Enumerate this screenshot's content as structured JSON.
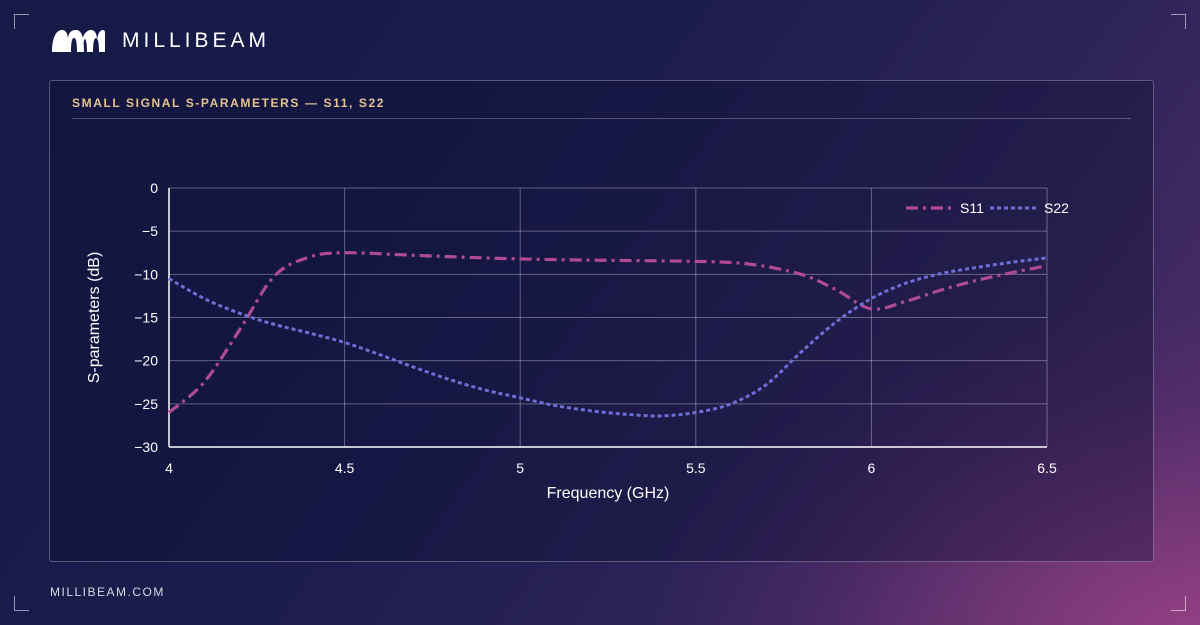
{
  "brand": {
    "name": "MILLIBEAM",
    "logo_icon": "millibeam-logo-icon"
  },
  "panel": {
    "title": "SMALL SIGNAL S-PARAMETERS — S11, S22"
  },
  "footer": {
    "url": "MILLIBEAM.COM"
  },
  "colors": {
    "accent_title": "#e3c38f",
    "s11": "#b04a93",
    "s22": "#6e6fd6"
  },
  "chart_data": {
    "type": "line",
    "title": "",
    "xlabel": "Frequency (GHz)",
    "ylabel": "S-parameters (dB)",
    "xlim": [
      4,
      6.5
    ],
    "ylim": [
      -30,
      0
    ],
    "xticks": [
      4,
      4.5,
      5,
      5.5,
      6,
      6.5
    ],
    "yticks": [
      0,
      -5,
      -10,
      -15,
      -20,
      -25,
      -30
    ],
    "grid": true,
    "legend_position": "top-right",
    "series": [
      {
        "name": "S11",
        "style": "dash-dot",
        "x": [
          4.0,
          4.1,
          4.2,
          4.3,
          4.4,
          4.5,
          4.7,
          4.9,
          5.1,
          5.3,
          5.5,
          5.65,
          5.8,
          5.9,
          6.0,
          6.1,
          6.2,
          6.3,
          6.4,
          6.5
        ],
        "y": [
          -26,
          -22.5,
          -16.5,
          -10.2,
          -8.0,
          -7.5,
          -7.8,
          -8.1,
          -8.3,
          -8.4,
          -8.5,
          -8.8,
          -10.0,
          -11.8,
          -14.0,
          -13.1,
          -11.8,
          -10.7,
          -9.8,
          -9.0
        ]
      },
      {
        "name": "S22",
        "style": "dotted",
        "x": [
          4.0,
          4.1,
          4.2,
          4.3,
          4.4,
          4.5,
          4.6,
          4.7,
          4.8,
          4.9,
          5.0,
          5.1,
          5.2,
          5.3,
          5.4,
          5.5,
          5.6,
          5.7,
          5.8,
          5.9,
          6.0,
          6.1,
          6.2,
          6.3,
          6.4,
          6.5
        ],
        "y": [
          -10.5,
          -12.8,
          -14.5,
          -15.8,
          -16.8,
          -17.9,
          -19.3,
          -20.8,
          -22.2,
          -23.4,
          -24.3,
          -25.2,
          -25.8,
          -26.2,
          -26.4,
          -26.0,
          -25.0,
          -22.8,
          -19.0,
          -15.5,
          -12.8,
          -11.0,
          -9.9,
          -9.2,
          -8.6,
          -8.1
        ]
      }
    ]
  }
}
